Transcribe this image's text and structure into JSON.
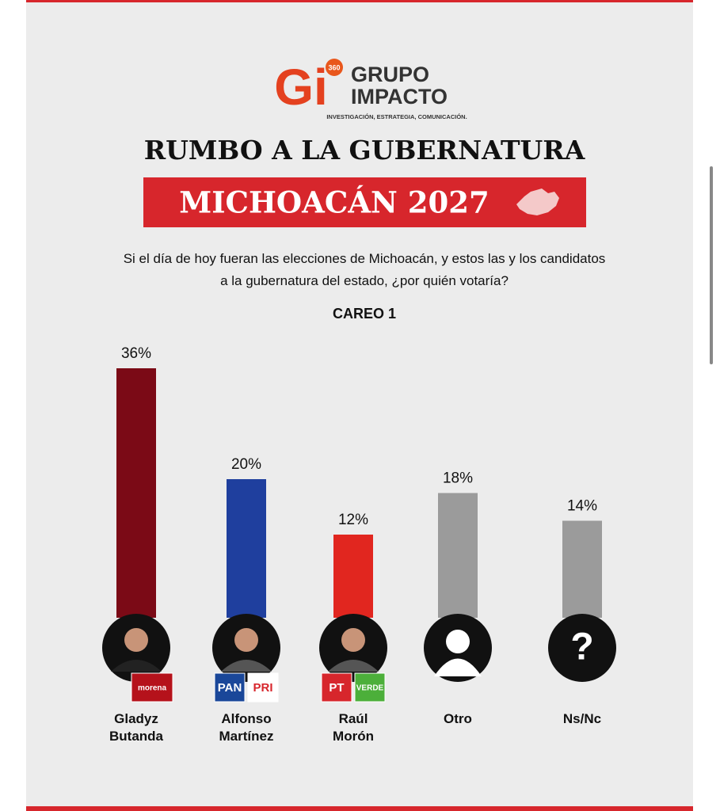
{
  "header": {
    "logo_mark": "Gi",
    "logo_badge": "360",
    "brand": "GRUPO IMPACTO",
    "tagline": "INVESTIGACIÓN, ESTRATEGIA, COMUNICACIÓN."
  },
  "chart_data": {
    "type": "bar",
    "title": "RUMBO A LA GUBERNATURA",
    "subtitle": "MICHOACÁN 2027",
    "question": "Si el día de hoy fueran las elecciones de Michoacán, y estos las y los candidatos a la gubernatura del estado, ¿por quién votaría?",
    "annotation": "CAREO 1",
    "categories": [
      "Gladyz Butanda",
      "Alfonso Martínez",
      "Raúl Morón",
      "Otro",
      "Ns/Nc"
    ],
    "values": [
      36,
      20,
      12,
      18,
      14
    ],
    "value_labels": [
      "36%",
      "20%",
      "12%",
      "18%",
      "14%"
    ],
    "colors": [
      "#7b0a16",
      "#1f3f9e",
      "#e1261f",
      "#9b9b9b",
      "#9b9b9b"
    ],
    "parties": [
      [
        "morena"
      ],
      [
        "PAN",
        "PRI"
      ],
      [
        "PT",
        "VERDE"
      ]
    ],
    "unknown_icon": "?"
  }
}
